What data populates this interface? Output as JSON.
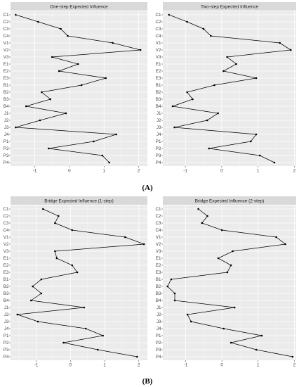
{
  "figure_labels": [
    "(A)",
    "(B)"
  ],
  "chart_data": [
    {
      "type": "line",
      "title": "One-step Expected Influence",
      "categories": [
        "C1",
        "C2",
        "C3",
        "C4",
        "V1",
        "V2",
        "V3",
        "E1",
        "E2",
        "E3",
        "B1",
        "B2",
        "B3",
        "B4",
        "J1",
        "J2",
        "J3",
        "J4",
        "P1",
        "P2",
        "P3",
        "P4"
      ],
      "values": [
        -1.55,
        -0.9,
        -0.25,
        -0.05,
        1.25,
        2.05,
        -0.5,
        0.25,
        -0.3,
        1.05,
        0.35,
        -0.8,
        -0.55,
        -1.25,
        -0.1,
        -0.85,
        -1.55,
        1.35,
        0.7,
        -0.6,
        0.95,
        1.15
      ],
      "x_ticks": [
        "-1",
        "0",
        "1",
        "2"
      ],
      "xlim": [
        -1.7,
        2.25
      ],
      "grid": true
    },
    {
      "type": "line",
      "title": "Two-step Expected Influence",
      "categories": [
        "C1",
        "C2",
        "C3",
        "C4",
        "V1",
        "V2",
        "V3",
        "E1",
        "E2",
        "E3",
        "B1",
        "B2",
        "B3",
        "B4",
        "J1",
        "J2",
        "J3",
        "J4",
        "P1",
        "P2",
        "P3",
        "P4"
      ],
      "values": [
        -1.45,
        -0.95,
        -0.5,
        -0.3,
        1.6,
        1.9,
        0.15,
        0.4,
        0.05,
        0.95,
        -0.2,
        -0.95,
        -0.8,
        -1.35,
        -0.1,
        -0.4,
        -1.3,
        0.95,
        0.8,
        -0.35,
        1.05,
        1.45
      ],
      "x_ticks": [
        "-1",
        "0",
        "1",
        "2"
      ],
      "xlim": [
        -1.62,
        2.05
      ],
      "grid": true
    },
    {
      "type": "line",
      "title": "Bridge Expected Influence (1-step)",
      "categories": [
        "C1",
        "C2",
        "C3",
        "C4",
        "V1",
        "V2",
        "V3",
        "E1",
        "E2",
        "E3",
        "B1",
        "B2",
        "B3",
        "B4",
        "J1",
        "J2",
        "J3",
        "J4",
        "P1",
        "P2",
        "P3",
        "P4"
      ],
      "values": [
        -0.8,
        -0.35,
        -0.45,
        0.05,
        1.6,
        2.15,
        -0.45,
        -0.4,
        0.05,
        0.2,
        -0.85,
        -1.1,
        -0.85,
        -1.15,
        0.4,
        -1.55,
        -0.95,
        0.45,
        0.95,
        -0.2,
        0.8,
        1.95
      ],
      "x_ticks": [
        "-1",
        "0",
        "1",
        "2"
      ],
      "xlim": [
        -1.75,
        2.25
      ],
      "grid": true
    },
    {
      "type": "line",
      "title": "Bridge Expected Influence (2-step)",
      "categories": [
        "C1",
        "C2",
        "C3",
        "C4",
        "V1",
        "V2",
        "V3",
        "E1",
        "E2",
        "E3",
        "B1",
        "B2",
        "B3",
        "B4",
        "J1",
        "J2",
        "J3",
        "J4",
        "P1",
        "P2",
        "P3",
        "P4"
      ],
      "values": [
        -0.65,
        -0.4,
        -0.55,
        0.0,
        1.5,
        1.75,
        0.3,
        -0.1,
        0.25,
        0.15,
        -1.4,
        -1.5,
        -1.3,
        -1.3,
        0.35,
        -0.95,
        -0.85,
        0.05,
        1.1,
        0.25,
        0.95,
        1.95
      ],
      "x_ticks": [
        "-1",
        "0",
        "1",
        "2"
      ],
      "xlim": [
        -1.63,
        2.05
      ],
      "grid": true
    }
  ]
}
